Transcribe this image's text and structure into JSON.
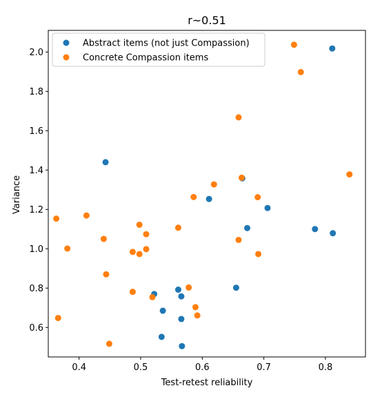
{
  "chart_data": {
    "type": "scatter",
    "title": "r~0.51",
    "xlabel": "Test-retest reliability",
    "ylabel": "Variance",
    "xlim": [
      0.35,
      0.865
    ],
    "ylim": [
      0.45,
      2.11
    ],
    "xticks": [
      0.4,
      0.5,
      0.6,
      0.7,
      0.8
    ],
    "yticks": [
      0.6,
      0.8,
      1.0,
      1.2,
      1.4,
      1.6,
      1.8,
      2.0
    ],
    "xtick_labels": [
      "0.4",
      "0.5",
      "0.6",
      "0.7",
      "0.8"
    ],
    "ytick_labels": [
      "0.6",
      "0.8",
      "1.0",
      "1.2",
      "1.4",
      "1.6",
      "1.8",
      "2.0"
    ],
    "grid": false,
    "legend_position": "top-left",
    "series": [
      {
        "name": "Abstract items (not just Compassion)",
        "color": "#1f77b4",
        "points": [
          [
            0.443,
            1.44
          ],
          [
            0.522,
            0.77
          ],
          [
            0.536,
            0.685
          ],
          [
            0.534,
            0.552
          ],
          [
            0.561,
            0.792
          ],
          [
            0.566,
            0.758
          ],
          [
            0.566,
            0.643
          ],
          [
            0.567,
            0.505
          ],
          [
            0.611,
            1.253
          ],
          [
            0.655,
            0.802
          ],
          [
            0.665,
            1.358
          ],
          [
            0.673,
            1.105
          ],
          [
            0.706,
            1.207
          ],
          [
            0.783,
            1.1
          ],
          [
            0.811,
            2.018
          ],
          [
            0.812,
            1.079
          ]
        ]
      },
      {
        "name": "Concrete Compassion items",
        "color": "#ff7f0e",
        "points": [
          [
            0.363,
            1.153
          ],
          [
            0.366,
            0.648
          ],
          [
            0.381,
            1.001
          ],
          [
            0.412,
            1.169
          ],
          [
            0.44,
            1.05
          ],
          [
            0.444,
            0.87
          ],
          [
            0.449,
            0.517
          ],
          [
            0.487,
            0.984
          ],
          [
            0.487,
            0.781
          ],
          [
            0.498,
            1.122
          ],
          [
            0.498,
            0.973
          ],
          [
            0.509,
            1.074
          ],
          [
            0.509,
            0.998
          ],
          [
            0.519,
            0.754
          ],
          [
            0.561,
            1.107
          ],
          [
            0.578,
            0.803
          ],
          [
            0.586,
            1.263
          ],
          [
            0.589,
            0.703
          ],
          [
            0.592,
            0.661
          ],
          [
            0.619,
            1.327
          ],
          [
            0.659,
            1.668
          ],
          [
            0.659,
            1.045
          ],
          [
            0.664,
            1.361
          ],
          [
            0.69,
            1.262
          ],
          [
            0.691,
            0.973
          ],
          [
            0.749,
            2.037
          ],
          [
            0.76,
            1.898
          ],
          [
            0.839,
            1.378
          ]
        ]
      }
    ]
  }
}
